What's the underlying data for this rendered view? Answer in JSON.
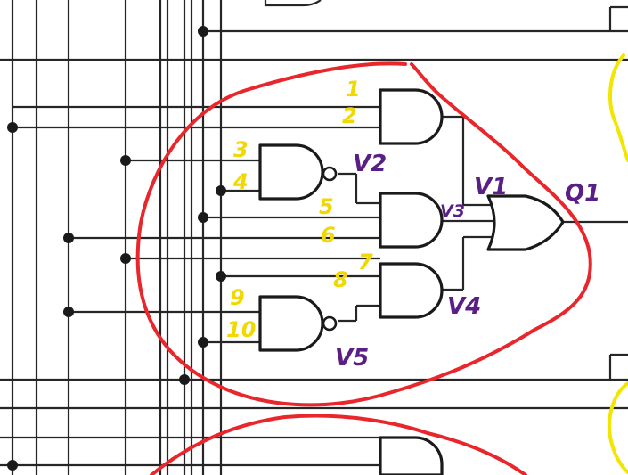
{
  "diagram": {
    "input_labels": [
      "1",
      "2",
      "3",
      "4",
      "5",
      "6",
      "7",
      "8",
      "9",
      "10"
    ],
    "gate_labels": [
      "V2",
      "V3",
      "V1",
      "V4",
      "V5"
    ],
    "output_label": "Q1",
    "colors": {
      "wire": "#262626",
      "annotation_red": "#e8262b",
      "number_yellow": "#f0d800",
      "label_purple": "#5a1f86"
    }
  }
}
